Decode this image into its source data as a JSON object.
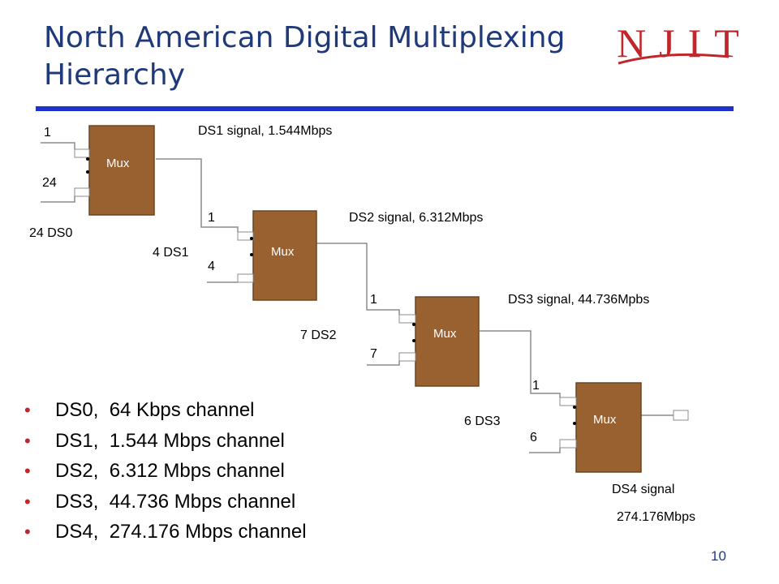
{
  "title": {
    "line1": "North American Digital Multiplexing",
    "line2": "Hierarchy"
  },
  "logo": {
    "text": "NJIT",
    "color": "#c0272d"
  },
  "colors": {
    "title": "#1f3a7a",
    "rule": "#1c32c8",
    "mux_box": "#99612f",
    "bullet": "#c0272d"
  },
  "mux_label": "Mux",
  "stage1": {
    "input_top": "1",
    "input_bottom": "24",
    "group": "24 DS0",
    "output": "DS1 signal, 1.544Mbps"
  },
  "stage2": {
    "input_top": "1",
    "input_bottom": "4",
    "group": "4 DS1",
    "output": "DS2 signal, 6.312Mbps"
  },
  "stage3": {
    "input_top": "1",
    "input_bottom": "7",
    "group": "7 DS2",
    "output": "DS3 signal, 44.736Mpbs"
  },
  "stage4": {
    "input_top": "1",
    "input_bottom": "6",
    "group": "6 DS3",
    "output_line1": "DS4 signal",
    "output_line2": "274.176Mbps"
  },
  "bullets": [
    "DS0,  64 Kbps channel",
    "DS1,  1.544 Mbps channel",
    "DS2,  6.312 Mbps channel",
    "DS3,  44.736 Mbps channel",
    "DS4,  274.176 Mbps channel"
  ],
  "page_number": "10"
}
